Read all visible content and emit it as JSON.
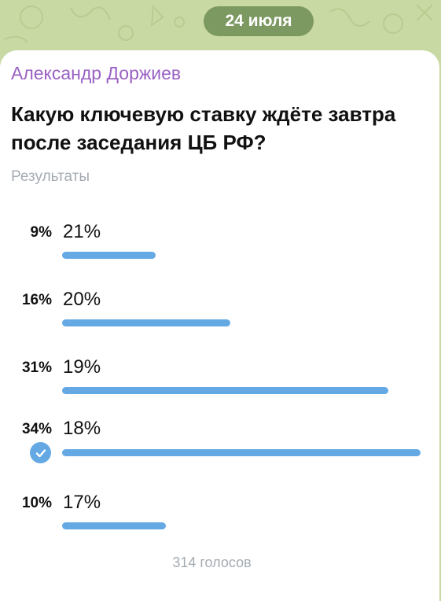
{
  "date_badge": "24 июля",
  "poll": {
    "author": "Александр Доржиев",
    "question": "Какую ключевую ставку ждёте завтра после заседания ЦБ РФ?",
    "results_label": "Результаты",
    "options": [
      {
        "percent": "9%",
        "label": "21%",
        "share": 0.26,
        "selected": false
      },
      {
        "percent": "16%",
        "label": "20%",
        "share": 0.47,
        "selected": false
      },
      {
        "percent": "31%",
        "label": "19%",
        "share": 0.91,
        "selected": false
      },
      {
        "percent": "34%",
        "label": "18%",
        "share": 1.0,
        "selected": true
      },
      {
        "percent": "10%",
        "label": "17%",
        "share": 0.29,
        "selected": false
      }
    ],
    "votes": "314 голосов"
  },
  "colors": {
    "author": "#9a61c3",
    "bar": "#64a9e4",
    "wallpaper": "#c9d9a4",
    "date_pill": "#608048"
  },
  "icons": {
    "selected_option": "check-circle-icon"
  }
}
